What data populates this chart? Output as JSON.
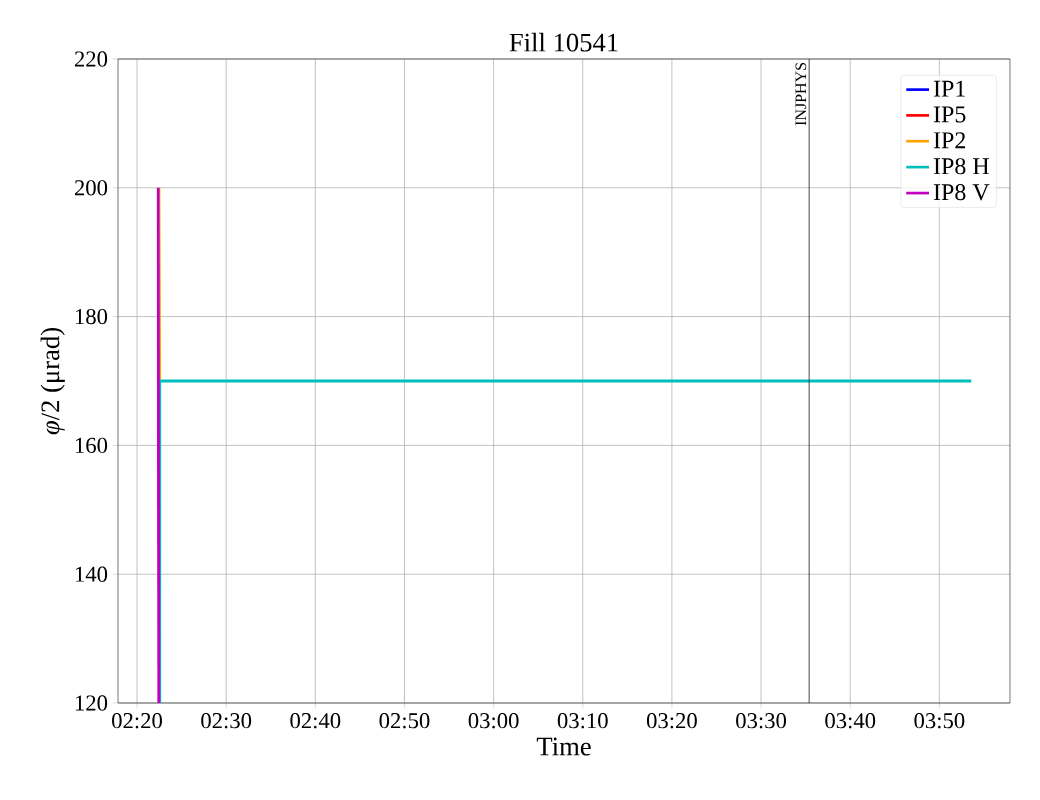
{
  "chart_data": {
    "type": "line",
    "title": "Fill 10541",
    "xlabel": "Time",
    "ylabel": "*φ*/2 (μrad)",
    "xlim": [
      2.2978,
      3.9654
    ],
    "ylim": [
      120,
      220
    ],
    "xticks": [
      {
        "value": 2.333333,
        "label": "02:20"
      },
      {
        "value": 2.5,
        "label": "02:30"
      },
      {
        "value": 2.666667,
        "label": "02:40"
      },
      {
        "value": 2.833333,
        "label": "02:50"
      },
      {
        "value": 3.0,
        "label": "03:00"
      },
      {
        "value": 3.166667,
        "label": "03:10"
      },
      {
        "value": 3.333333,
        "label": "03:20"
      },
      {
        "value": 3.5,
        "label": "03:30"
      },
      {
        "value": 3.666667,
        "label": "03:40"
      },
      {
        "value": 3.833333,
        "label": "03:50"
      }
    ],
    "yticks": [
      120,
      140,
      160,
      180,
      200,
      220
    ],
    "grid": true,
    "legend": "top right",
    "line_style": "solid",
    "marker": "none",
    "ref_lines": [
      {
        "axis": "x",
        "value": 3.5899,
        "label": "INJPHYS",
        "color": "#000000"
      }
    ],
    "series": [
      {
        "name": "IP1",
        "color": "#0000ff"
      },
      {
        "name": "IP5",
        "color": "#ff0000"
      },
      {
        "name": "IP2",
        "color": "#ffa500",
        "x": [
          2.3742,
          2.3757
        ],
        "values": [
          200,
          170
        ]
      },
      {
        "name": "IP8 H",
        "color": "#00bfbf",
        "x": [
          2.3757,
          2.3757,
          3.893
        ],
        "values": [
          120,
          170,
          170
        ]
      },
      {
        "name": "IP8 V",
        "color": "#bf00bf",
        "x": [
          2.3727,
          2.3742
        ],
        "values": [
          200,
          120
        ]
      }
    ]
  }
}
